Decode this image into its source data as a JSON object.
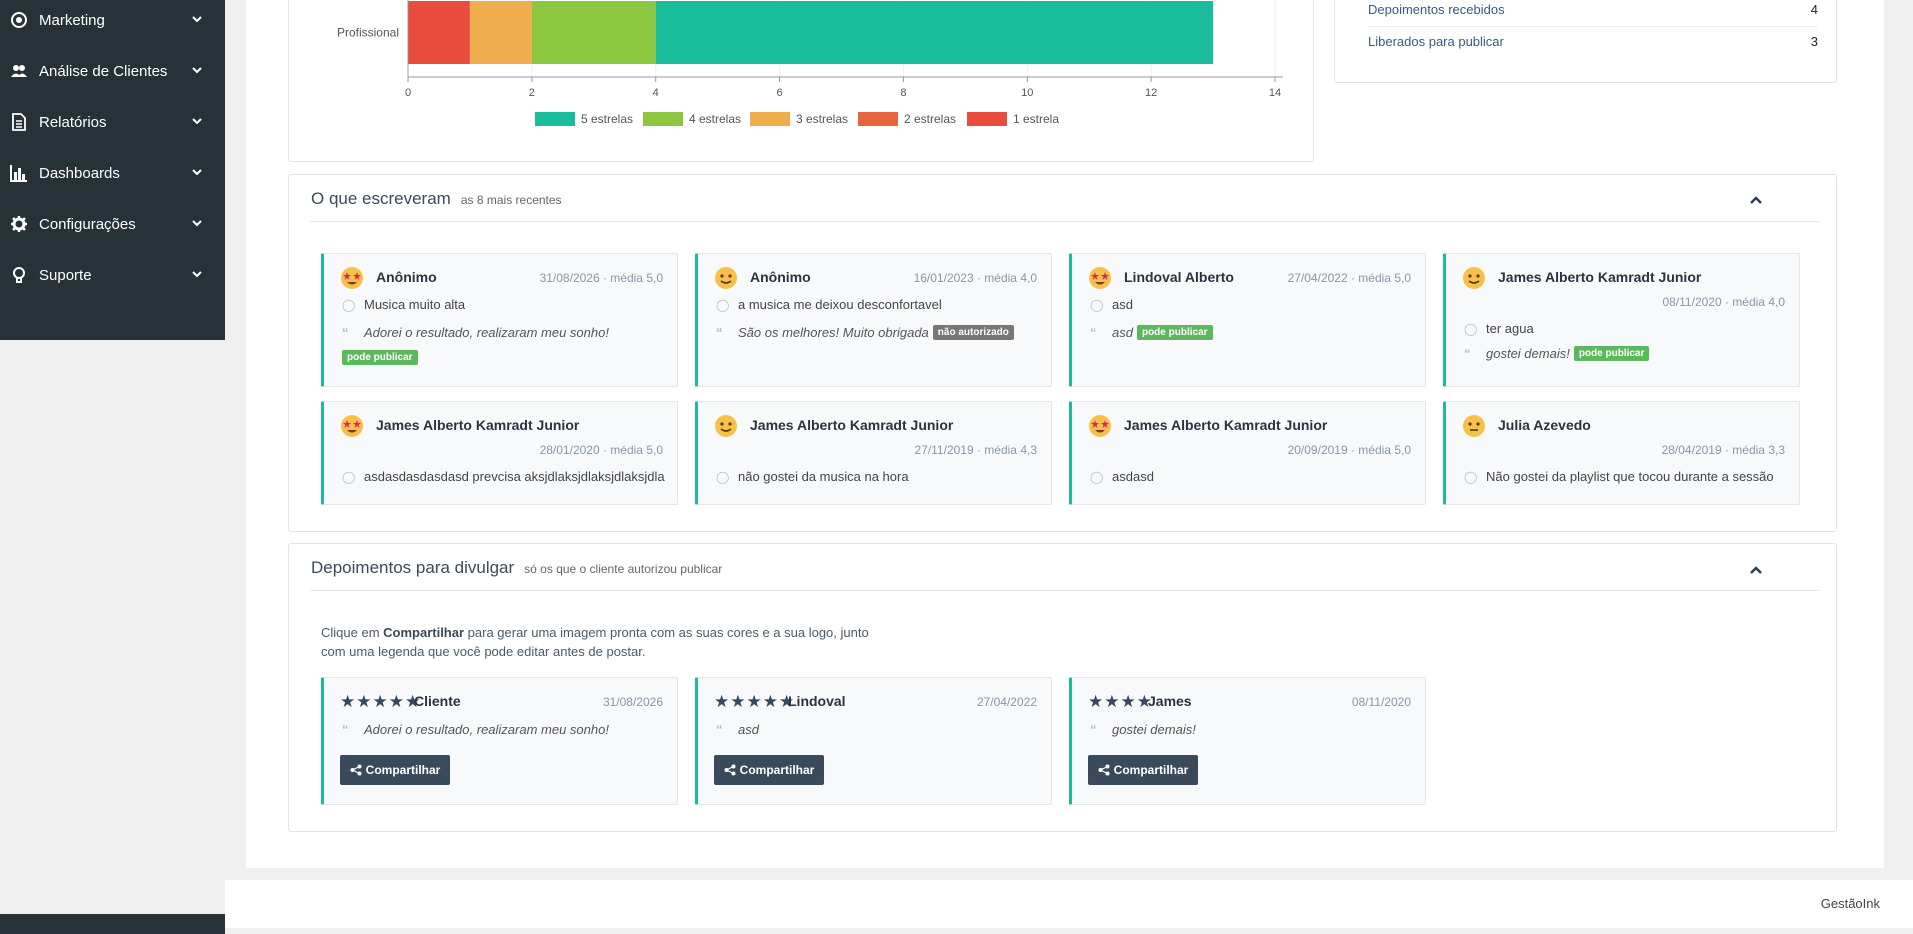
{
  "sidebar": {
    "items": [
      {
        "label": "Marketing",
        "icon": "bullseye-icon"
      },
      {
        "label": "Análise de Clientes",
        "icon": "users-icon"
      },
      {
        "label": "Relatórios",
        "icon": "file-icon"
      },
      {
        "label": "Dashboards",
        "icon": "bar-chart-icon"
      },
      {
        "label": "Configurações",
        "icon": "gear-icon"
      },
      {
        "label": "Suporte",
        "icon": "lightbulb-icon"
      }
    ]
  },
  "chart_data": {
    "type": "bar",
    "orientation": "horizontal",
    "stacked": true,
    "categories": [
      "Profissional"
    ],
    "series": [
      {
        "name": "1 estrela",
        "values": [
          1
        ],
        "color": "#e74c3c"
      },
      {
        "name": "2 estrelas",
        "values": [
          0
        ],
        "color": "#e8643c"
      },
      {
        "name": "3 estrelas",
        "values": [
          1
        ],
        "color": "#f0ad4e"
      },
      {
        "name": "4 estrelas",
        "values": [
          2
        ],
        "color": "#8dc63f"
      },
      {
        "name": "5 estrelas",
        "values": [
          9
        ],
        "color": "#1abc9c"
      }
    ],
    "legend_order": [
      "5 estrelas",
      "4 estrelas",
      "3 estrelas",
      "2 estrelas",
      "1 estrela"
    ],
    "xlim": [
      0,
      14
    ],
    "xticks": [
      "0",
      "2",
      "4",
      "6",
      "8",
      "10",
      "12",
      "14"
    ],
    "grid": true,
    "legend_position": "bottom"
  },
  "stats": {
    "rows": [
      {
        "label": "Depoimentos recebidos",
        "value": "4"
      },
      {
        "label": "Liberados para publicar",
        "value": "3"
      }
    ]
  },
  "written": {
    "title": "O que escreveram",
    "subtitle": "as 8 mais recentes",
    "cards": [
      {
        "emoji": "star-eyes-emoji-icon",
        "name": "Anônimo",
        "meta": "31/08/2026 · média 5,0",
        "suggestion": "Musica muito alta",
        "quote": "Adorei o resultado, realizaram meu sonho!",
        "badge": "pode publicar",
        "badge_color": "#5cb85c"
      },
      {
        "emoji": "smile-emoji-icon",
        "name": "Anônimo",
        "meta": "16/01/2023 · média 4,0",
        "suggestion": "a musica me deixou desconfortavel",
        "quote": "São os melhores! Muito obrigada",
        "badge": "não autorizado",
        "badge_color": "#777777"
      },
      {
        "emoji": "star-eyes-emoji-icon",
        "name": "Lindoval Alberto",
        "meta": "27/04/2022 · média 5,0",
        "suggestion": "asd",
        "quote": "asd",
        "badge": "pode publicar",
        "badge_color": "#5cb85c"
      },
      {
        "emoji": "smile-emoji-icon",
        "name": "James Alberto Kamradt Junior",
        "meta": "08/11/2020 · média 4,0",
        "suggestion": "ter agua",
        "quote": "gostei demais!",
        "badge": "pode publicar",
        "badge_color": "#5cb85c"
      },
      {
        "emoji": "star-eyes-emoji-icon",
        "name": "James Alberto Kamradt Junior",
        "meta": "28/01/2020 · média 5,0",
        "suggestion": "asdasdasdasdasd prevcisa aksjdlaksjdlaksjdlaksjdla"
      },
      {
        "emoji": "smile-emoji-icon",
        "name": "James Alberto Kamradt Junior",
        "meta": "27/11/2019 · média 4,3",
        "suggestion": "não gostei da musica na hora"
      },
      {
        "emoji": "star-eyes-emoji-icon",
        "name": "James Alberto Kamradt Junior",
        "meta": "20/09/2019 · média 5,0",
        "suggestion": "asdasd"
      },
      {
        "emoji": "neutral-emoji-icon",
        "name": "Julia Azevedo",
        "meta": "28/04/2019 · média 3,3",
        "suggestion": "Não gostei da playlist que tocou durante a sessão"
      }
    ]
  },
  "publish": {
    "title": "Depoimentos para divulgar",
    "subtitle": "só os que o cliente autorizou publicar",
    "intro_prefix": "Clique em ",
    "intro_bold": "Compartilhar",
    "intro_suffix_1": " para gerar uma imagem pronta com as suas cores e a sua logo, junto",
    "intro_line_2": "com uma legenda que você pode editar antes de postar.",
    "share_label": "Compartilhar",
    "cards": [
      {
        "stars": "★★★★★",
        "rating": 5,
        "name": "Cliente",
        "date": "31/08/2026",
        "quote": "Adorei o resultado, realizaram meu sonho!"
      },
      {
        "stars": "★★★★★",
        "rating": 5,
        "name": "Lindoval",
        "date": "27/04/2022",
        "quote": "asd"
      },
      {
        "stars": "★★★★",
        "rating": 4,
        "name": "James",
        "date": "08/11/2020",
        "quote": "gostei demais!"
      }
    ]
  },
  "footer": {
    "brand": "GestãoInk"
  }
}
